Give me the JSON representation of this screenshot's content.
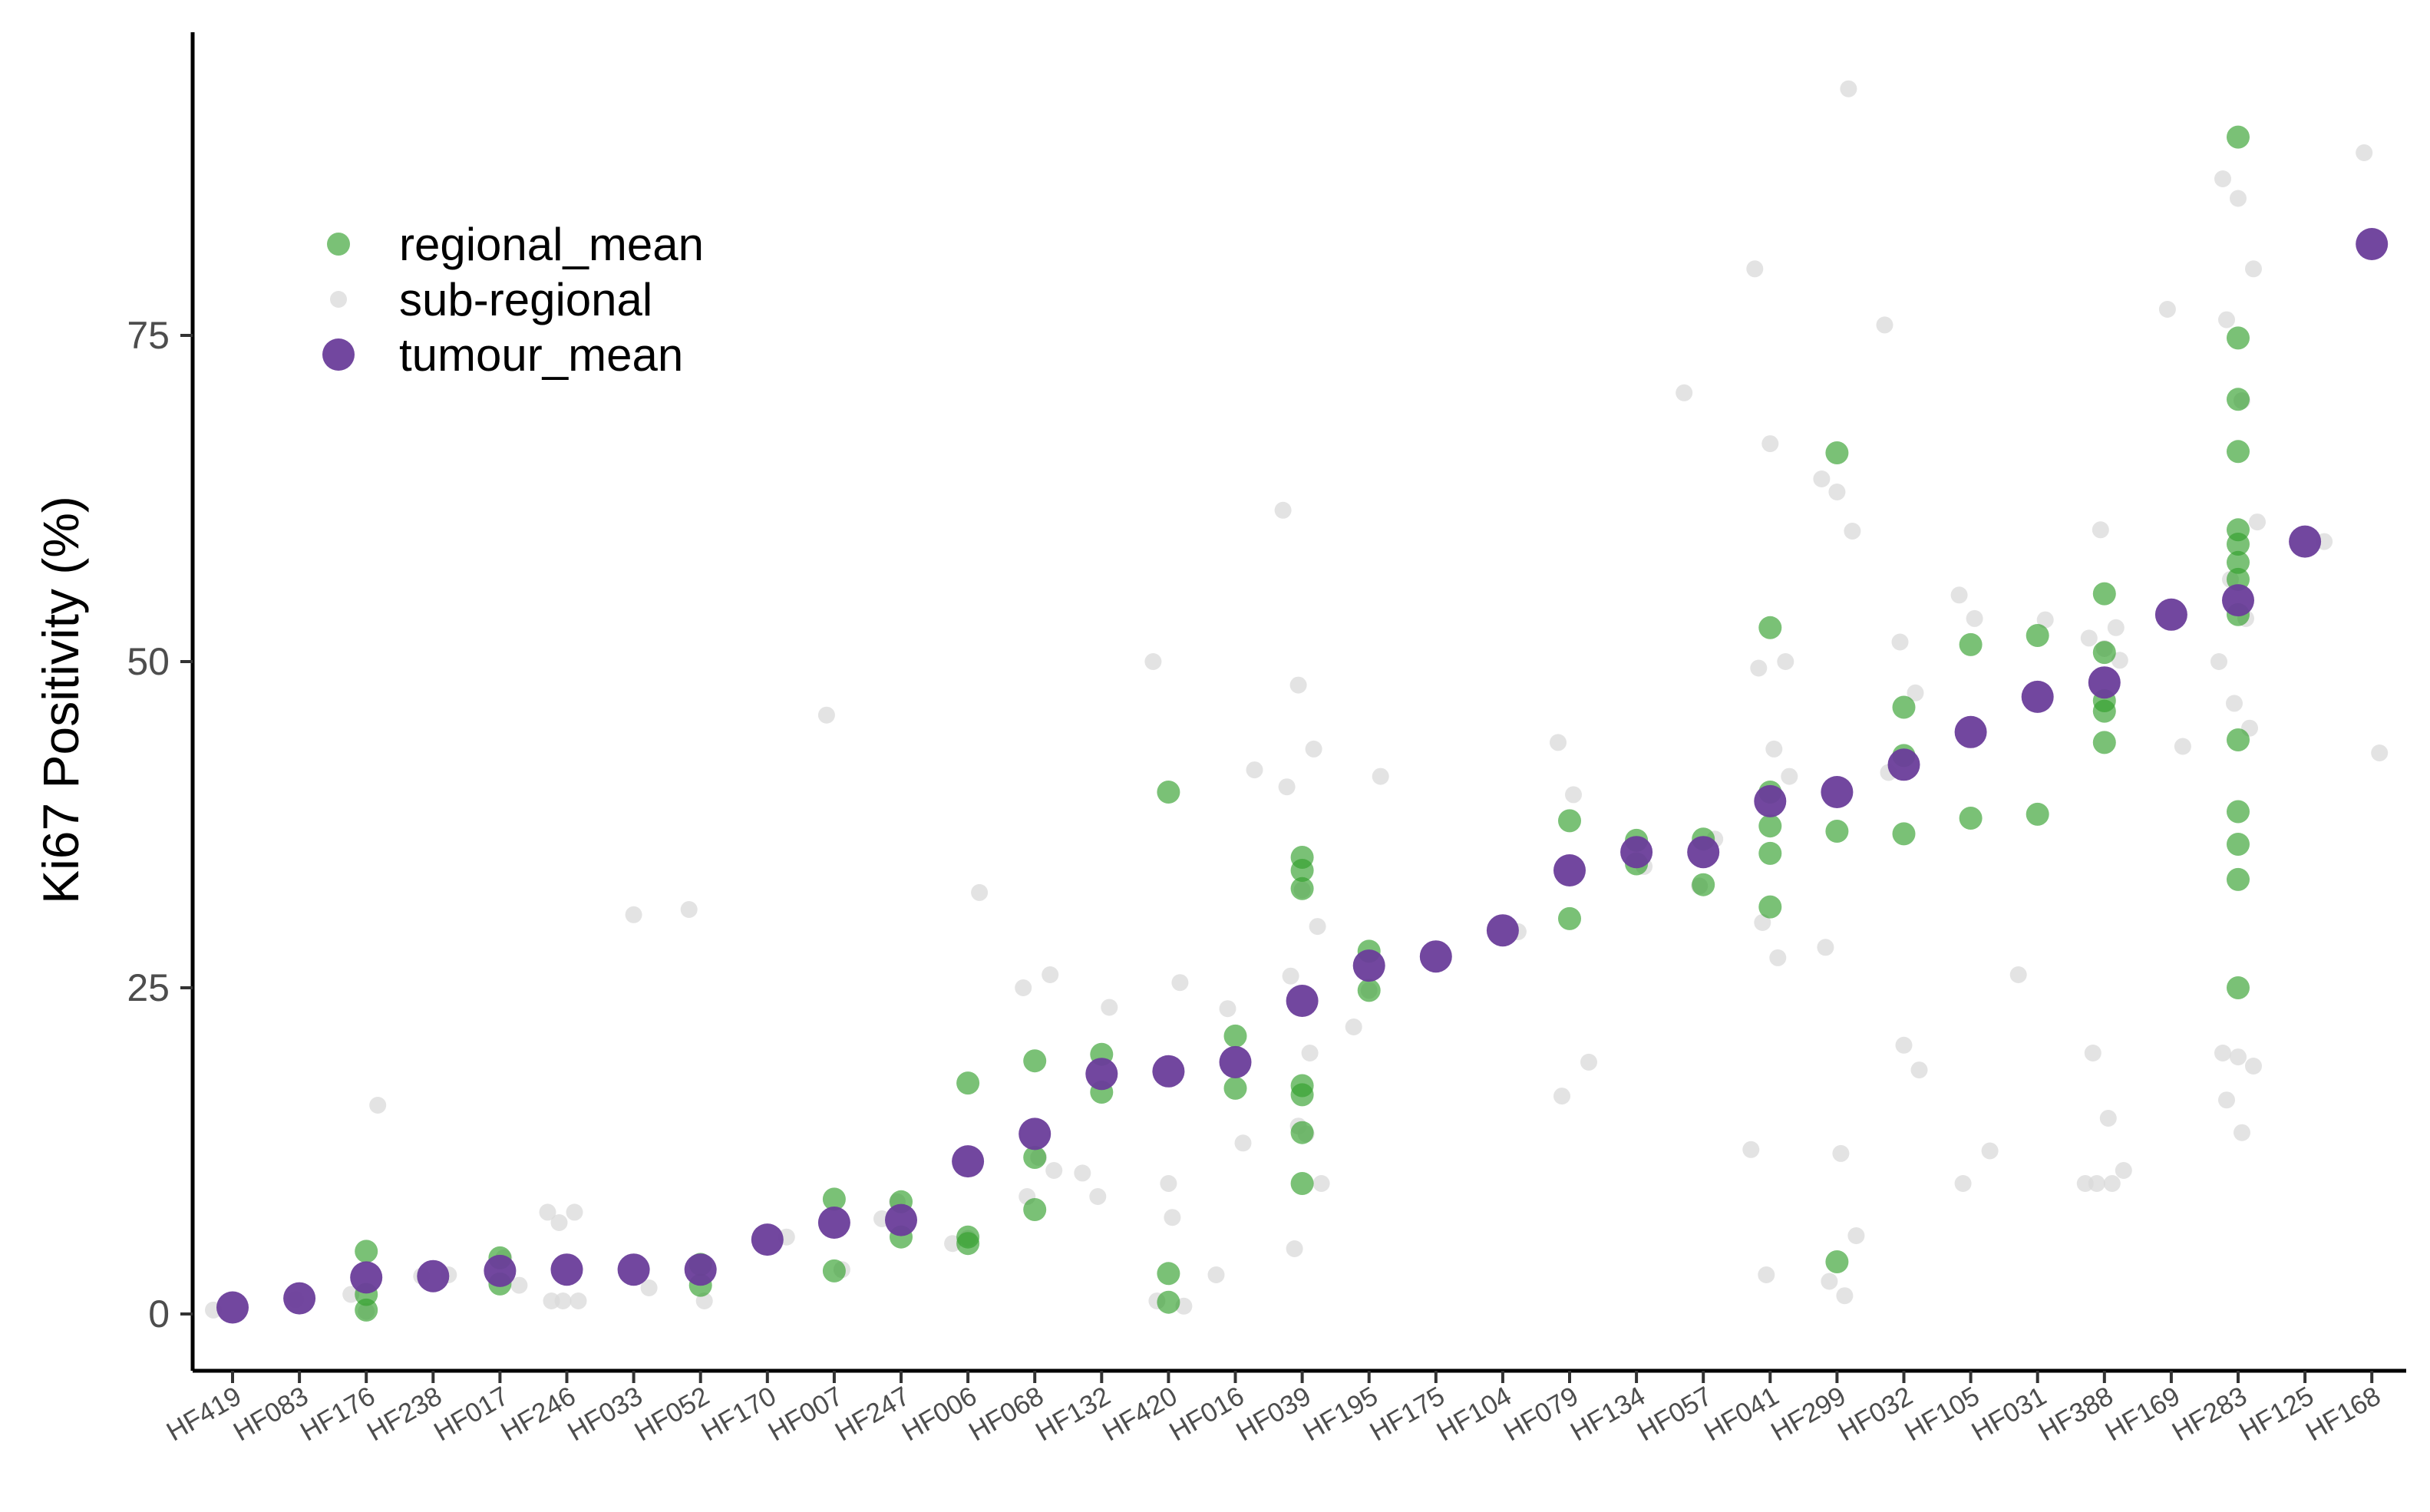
{
  "chart_data": {
    "type": "scatter",
    "title": "",
    "xlabel": "",
    "ylabel": "Ki67 Positivity (%)",
    "ylim": [
      -7,
      99
    ],
    "yticks": [
      0,
      25,
      50,
      75
    ],
    "grid": false,
    "legend_placement": "top-left",
    "categories": [
      "HF419",
      "HF083",
      "HF176",
      "HF238",
      "HF017",
      "HF246",
      "HF033",
      "HF052",
      "HF170",
      "HF007",
      "HF247",
      "HF006",
      "HF068",
      "HF132",
      "HF420",
      "HF016",
      "HF039",
      "HF195",
      "HF175",
      "HF104",
      "HF079",
      "HF134",
      "HF057",
      "HF041",
      "HF299",
      "HF032",
      "HF105",
      "HF031",
      "HF388",
      "HF169",
      "HF283",
      "HF125",
      "HF168"
    ],
    "series": [
      {
        "name": "regional_mean",
        "color": "#33a02c",
        "points": [
          [
            2,
            4.8
          ],
          [
            2,
            1.5
          ],
          [
            2,
            0.3
          ],
          [
            4,
            4.3
          ],
          [
            4,
            2.3
          ],
          [
            7,
            3.8
          ],
          [
            7,
            2.2
          ],
          [
            9,
            8.8
          ],
          [
            9,
            3.3
          ],
          [
            10,
            8.6
          ],
          [
            10,
            5.9
          ],
          [
            11,
            17.7
          ],
          [
            11,
            5.9
          ],
          [
            11,
            5.4
          ],
          [
            12,
            19.4
          ],
          [
            12,
            12
          ],
          [
            12,
            8
          ],
          [
            13,
            19.9
          ],
          [
            13,
            17
          ],
          [
            14,
            40
          ],
          [
            14,
            3.1
          ],
          [
            14,
            0.9
          ],
          [
            15,
            21.3
          ],
          [
            15,
            17.3
          ],
          [
            16,
            35
          ],
          [
            16,
            34
          ],
          [
            16,
            32.6
          ],
          [
            16,
            17.5
          ],
          [
            16,
            16.8
          ],
          [
            16,
            13.9
          ],
          [
            16,
            10
          ],
          [
            17,
            27.8
          ],
          [
            17,
            24.8
          ],
          [
            20,
            37.8
          ],
          [
            20,
            30.3
          ],
          [
            21,
            36.3
          ],
          [
            21,
            34.5
          ],
          [
            22,
            36.4
          ],
          [
            22,
            32.9
          ],
          [
            23,
            52.6
          ],
          [
            23,
            40
          ],
          [
            23,
            37.4
          ],
          [
            23,
            35.3
          ],
          [
            23,
            31.2
          ],
          [
            24,
            66
          ],
          [
            24,
            37
          ],
          [
            24,
            4
          ],
          [
            25,
            46.5
          ],
          [
            25,
            42.8
          ],
          [
            25,
            36.8
          ],
          [
            26,
            51.3
          ],
          [
            26,
            38
          ],
          [
            27,
            52
          ],
          [
            27,
            38.3
          ],
          [
            28,
            55.2
          ],
          [
            28,
            50.7
          ],
          [
            28,
            47
          ],
          [
            28,
            46.2
          ],
          [
            28,
            43.8
          ],
          [
            30,
            90.2
          ],
          [
            30,
            74.8
          ],
          [
            30,
            70.1
          ],
          [
            30,
            66.1
          ],
          [
            30,
            60.1
          ],
          [
            30,
            59
          ],
          [
            30,
            57.6
          ],
          [
            30,
            56.3
          ],
          [
            30,
            53.6
          ],
          [
            30,
            44
          ],
          [
            30,
            38.5
          ],
          [
            30,
            36
          ],
          [
            30,
            33.3
          ],
          [
            30,
            25
          ]
        ]
      },
      {
        "name": "sub-regional",
        "color": "#d9d9d9",
        "points": [
          [
            0,
            0.3
          ],
          [
            1,
            1.1
          ],
          [
            2,
            16
          ],
          [
            2,
            1.5
          ],
          [
            2,
            0.2
          ],
          [
            3,
            3
          ],
          [
            3,
            2.9
          ],
          [
            4,
            4.3
          ],
          [
            4,
            2.2
          ],
          [
            5,
            7
          ],
          [
            5,
            7.8
          ],
          [
            5,
            7.8
          ],
          [
            5,
            1
          ],
          [
            5,
            1
          ],
          [
            5,
            1
          ],
          [
            6,
            30.6
          ],
          [
            6,
            2
          ],
          [
            7,
            31
          ],
          [
            7,
            1
          ],
          [
            8,
            5.9
          ],
          [
            9,
            45.9
          ],
          [
            9,
            3.4
          ],
          [
            10,
            7.3
          ],
          [
            10,
            8.6
          ],
          [
            11,
            32.3
          ],
          [
            11,
            5.4
          ],
          [
            11,
            5.8
          ],
          [
            12,
            26
          ],
          [
            12,
            25
          ],
          [
            12,
            12
          ],
          [
            12,
            11
          ],
          [
            12,
            9
          ],
          [
            13,
            23.5
          ],
          [
            13,
            10.8
          ],
          [
            13,
            9
          ],
          [
            14,
            25.4
          ],
          [
            14,
            50
          ],
          [
            14,
            10
          ],
          [
            14,
            0.6
          ],
          [
            14,
            1
          ],
          [
            14,
            7.4
          ],
          [
            15,
            41.7
          ],
          [
            15,
            23.4
          ],
          [
            15,
            13.1
          ],
          [
            15,
            3
          ],
          [
            16,
            48.2
          ],
          [
            16,
            43.3
          ],
          [
            16,
            40.4
          ],
          [
            16,
            32.5
          ],
          [
            16,
            29.7
          ],
          [
            16,
            25.9
          ],
          [
            16,
            13.8
          ],
          [
            16,
            10
          ],
          [
            16,
            5
          ],
          [
            16,
            20
          ],
          [
            16,
            61.6
          ],
          [
            16,
            14.4
          ],
          [
            17,
            41.2
          ],
          [
            17,
            22
          ],
          [
            17,
            24.8
          ],
          [
            19,
            29.3
          ],
          [
            20,
            43.8
          ],
          [
            20,
            39.8
          ],
          [
            20,
            19.3
          ],
          [
            20,
            16.7
          ],
          [
            21,
            34.3
          ],
          [
            22,
            70.6
          ],
          [
            22,
            32.8
          ],
          [
            22,
            36.4
          ],
          [
            23,
            80.1
          ],
          [
            23,
            66.7
          ],
          [
            23,
            50
          ],
          [
            23,
            49.5
          ],
          [
            23,
            43.3
          ],
          [
            23,
            41.2
          ],
          [
            23,
            30
          ],
          [
            23,
            27.3
          ],
          [
            23,
            12.6
          ],
          [
            23,
            3
          ],
          [
            24,
            93.9
          ],
          [
            24,
            64
          ],
          [
            24,
            63
          ],
          [
            24,
            60
          ],
          [
            24,
            28.1
          ],
          [
            24,
            12.3
          ],
          [
            24,
            6
          ],
          [
            24,
            2.5
          ],
          [
            24,
            1.4
          ],
          [
            25,
            75.8
          ],
          [
            25,
            51.5
          ],
          [
            25,
            47.6
          ],
          [
            25,
            41.5
          ],
          [
            25,
            20.6
          ],
          [
            25,
            18.7
          ],
          [
            26,
            55.1
          ],
          [
            26,
            53.3
          ],
          [
            26,
            12.5
          ],
          [
            26,
            10
          ],
          [
            27,
            53.2
          ],
          [
            27,
            26
          ],
          [
            28,
            60.1
          ],
          [
            28,
            52.6
          ],
          [
            28,
            51.8
          ],
          [
            28,
            51
          ],
          [
            28,
            50.1
          ],
          [
            28,
            20
          ],
          [
            28,
            15
          ],
          [
            28,
            11
          ],
          [
            28,
            10
          ],
          [
            28,
            10
          ],
          [
            28,
            10
          ],
          [
            29,
            77
          ],
          [
            29,
            43.5
          ],
          [
            30,
            87
          ],
          [
            30,
            85.5
          ],
          [
            30,
            80.1
          ],
          [
            30,
            76.2
          ],
          [
            30,
            70
          ],
          [
            30,
            60.7
          ],
          [
            30,
            56.3
          ],
          [
            30,
            53.3
          ],
          [
            30,
            50
          ],
          [
            30,
            46.8
          ],
          [
            30,
            44.9
          ],
          [
            30,
            20
          ],
          [
            30,
            19.7
          ],
          [
            30,
            19
          ],
          [
            30,
            16.4
          ],
          [
            30,
            13.9
          ],
          [
            31,
            59.2
          ],
          [
            32,
            89
          ],
          [
            32,
            43
          ]
        ]
      },
      {
        "name": "tumour_mean",
        "color": "#6a3d9a",
        "points": [
          [
            0,
            0.5
          ],
          [
            1,
            1.2
          ],
          [
            2,
            2.8
          ],
          [
            3,
            2.9
          ],
          [
            4,
            3.3
          ],
          [
            5,
            3.4
          ],
          [
            6,
            3.4
          ],
          [
            7,
            3.4
          ],
          [
            8,
            5.7
          ],
          [
            9,
            7
          ],
          [
            10,
            7.2
          ],
          [
            11,
            11.7
          ],
          [
            12,
            13.8
          ],
          [
            13,
            18.4
          ],
          [
            14,
            18.6
          ],
          [
            15,
            19.3
          ],
          [
            16,
            24
          ],
          [
            17,
            26.7
          ],
          [
            18,
            27.4
          ],
          [
            19,
            29.4
          ],
          [
            20,
            34
          ],
          [
            21,
            35.4
          ],
          [
            22,
            35.4
          ],
          [
            23,
            39.3
          ],
          [
            24,
            40
          ],
          [
            25,
            42.1
          ],
          [
            26,
            44.6
          ],
          [
            27,
            47.3
          ],
          [
            28,
            48.4
          ],
          [
            29,
            53.6
          ],
          [
            30,
            54.7
          ],
          [
            31,
            59.2
          ],
          [
            32,
            82
          ]
        ]
      }
    ]
  }
}
